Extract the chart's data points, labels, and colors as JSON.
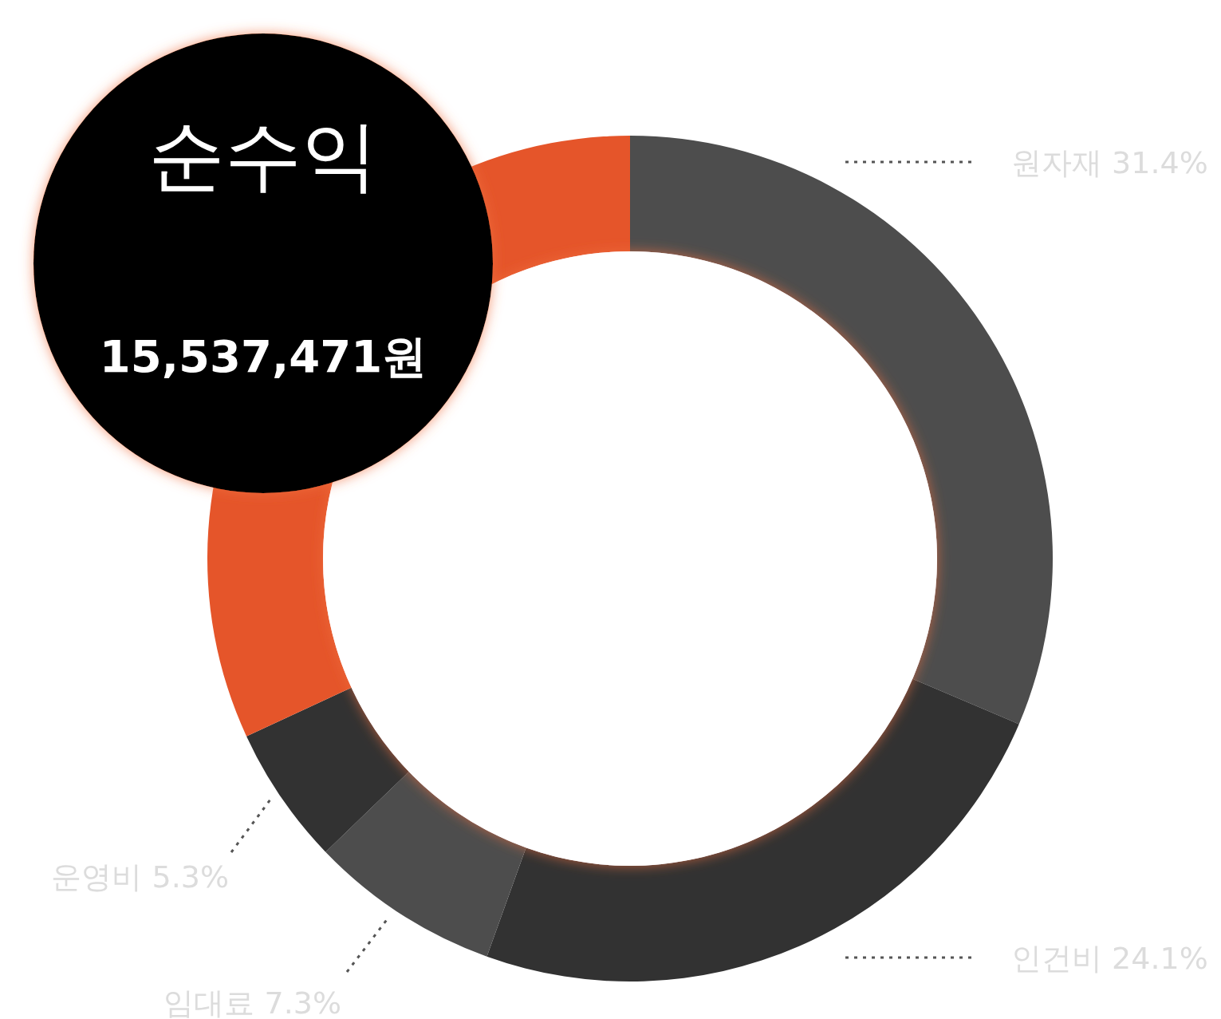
{
  "chart_data": {
    "type": "donut",
    "categories": [
      "원자재",
      "인건비",
      "임대료",
      "운영비",
      "순수익"
    ],
    "values": [
      31.4,
      24.1,
      7.3,
      5.3,
      31.9
    ],
    "colors": [
      "#4d4d4d",
      "#323232",
      "#4d4d4d",
      "#323232",
      "#e5552a"
    ],
    "value_labels": [
      "31.4%",
      "24.1%",
      "7.3%",
      "5.3%",
      null
    ],
    "annotations": [
      "15,537,471원"
    ]
  }
}
